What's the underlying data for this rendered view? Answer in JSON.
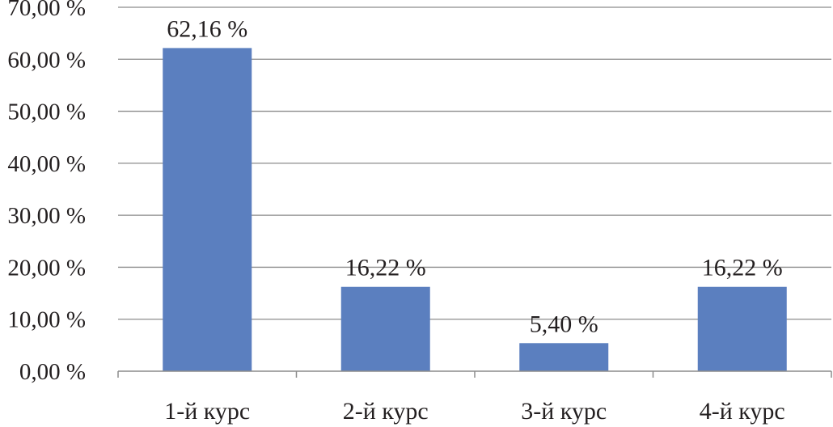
{
  "chart_data": {
    "type": "bar",
    "categories": [
      "1-й курс",
      "2-й курс",
      "3-й курс",
      "4-й курс"
    ],
    "values": [
      62.16,
      16.22,
      5.4,
      16.22
    ],
    "data_labels": [
      "62,16 %",
      "16,22 %",
      "5,40 %",
      "16,22 %"
    ],
    "ylim": [
      0,
      70
    ],
    "y_ticks": [
      0,
      10,
      20,
      30,
      40,
      50,
      60,
      70
    ],
    "y_tick_labels": [
      "0,00 %",
      "10,00 %",
      "20,00 %",
      "30,00 %",
      "40,00 %",
      "50,00 %",
      "60,00 %",
      "70,00 %"
    ],
    "grid": true,
    "legend": "none",
    "colors": {
      "bar": "#5b7fbf",
      "grid": "#8c8c8c",
      "text": "#231f20"
    }
  }
}
